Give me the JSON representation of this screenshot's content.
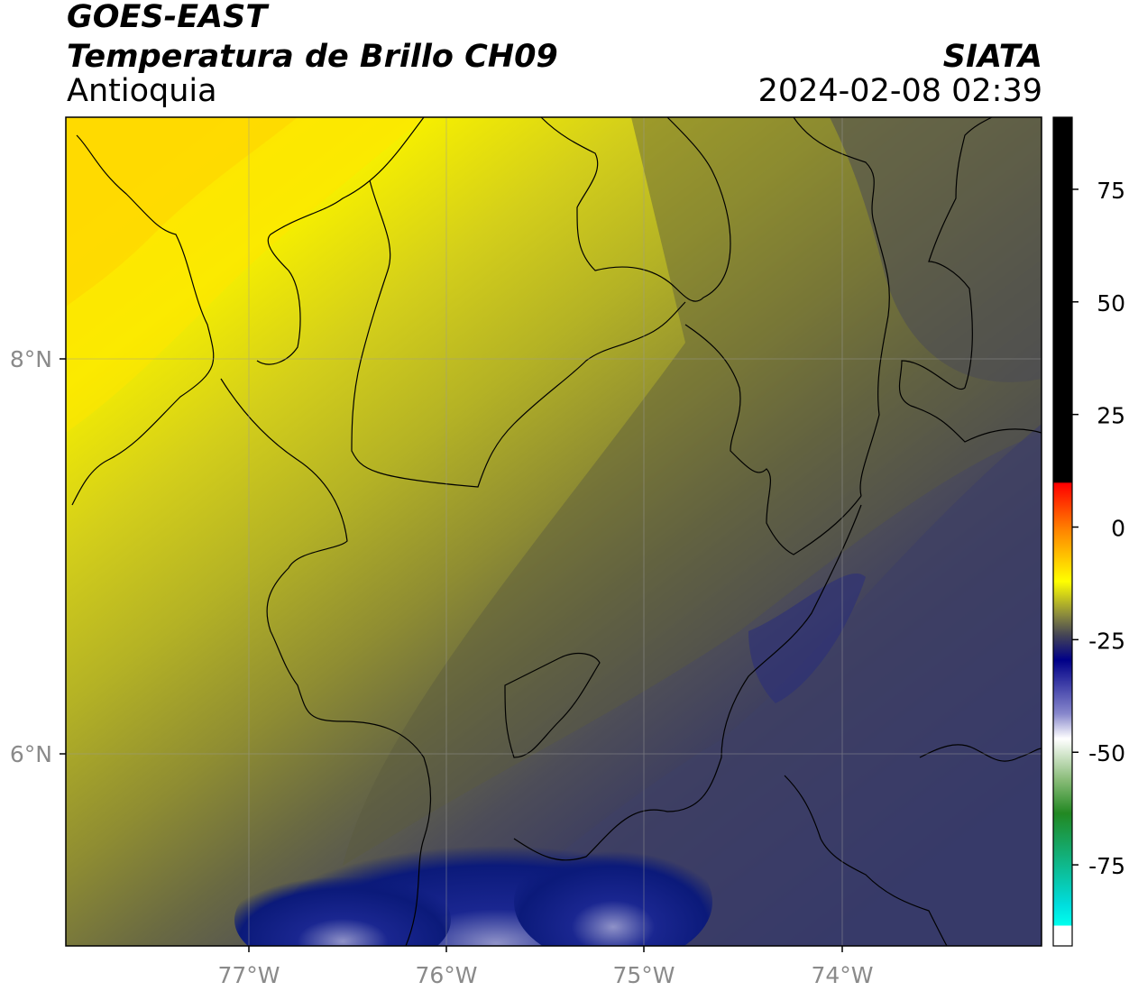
{
  "header": {
    "satellite": "GOES-EAST",
    "product": "Temperatura de Brillo CH09",
    "region": "Antioquia",
    "agency": "SIATA",
    "datetime": "2024-02-08 02:39"
  },
  "map": {
    "lon_labels": [
      "77°W",
      "76°W",
      "75°W",
      "74°W"
    ],
    "lat_labels": [
      "8°N",
      "6°N"
    ],
    "colors": {
      "yellow": "#f2e600",
      "olive": "#9a9a2a",
      "dark_olive": "#6d6d3a",
      "slate": "#4a4a5e",
      "navy": "#1e2a78",
      "deep_navy": "#0a1470"
    }
  },
  "colorbar": {
    "tick_labels": [
      "75",
      "50",
      "25",
      "0",
      "-25",
      "-50",
      "-75"
    ],
    "ticks": [
      75,
      50,
      25,
      0,
      -25,
      -50,
      -75
    ],
    "vmin": -93,
    "vmax": 91
  }
}
